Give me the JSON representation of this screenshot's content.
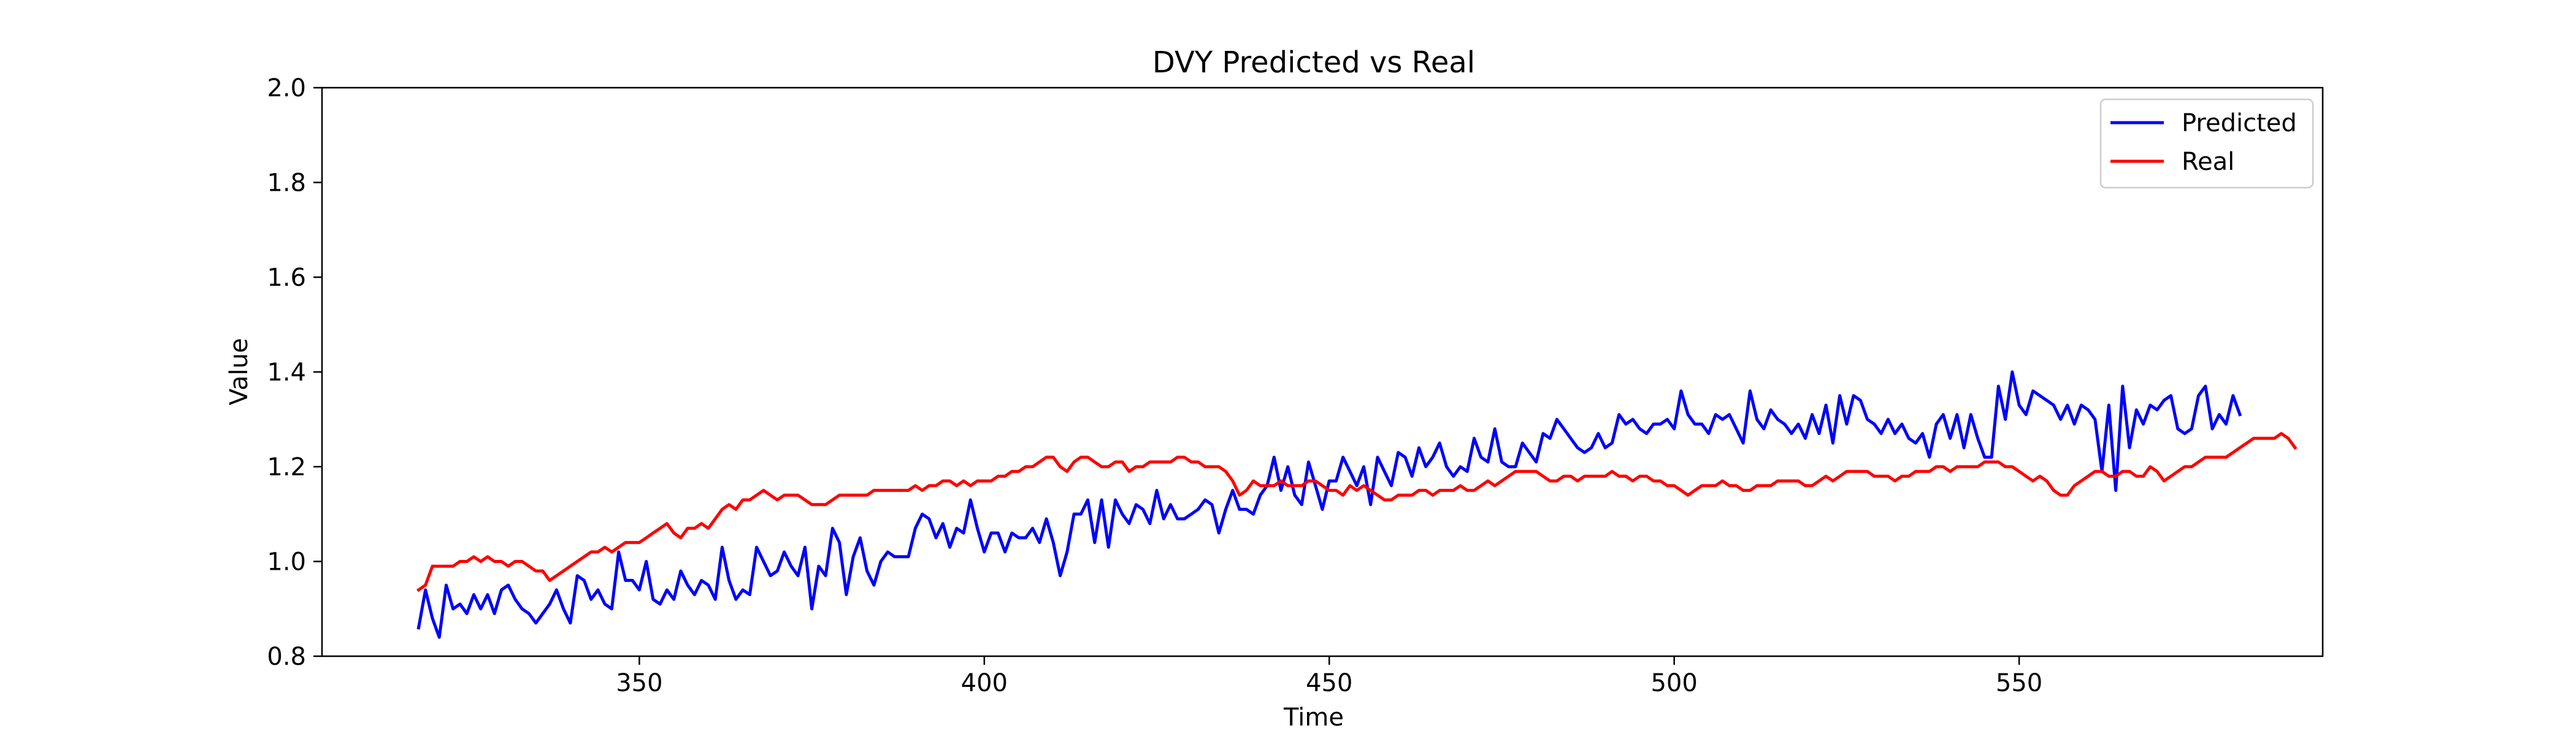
{
  "chart_data": {
    "type": "line",
    "title": "DVY Predicted vs Real",
    "xlabel": "Time",
    "ylabel": "Value",
    "xlim": [
      304,
      594
    ],
    "ylim": [
      0.8,
      2.0
    ],
    "xticks": [
      350,
      400,
      450,
      500,
      550
    ],
    "yticks": [
      0.8,
      1.0,
      1.2,
      1.4,
      1.6,
      1.8,
      2.0
    ],
    "xtick_labels": [
      "350",
      "400",
      "450",
      "500",
      "550"
    ],
    "ytick_labels": [
      "0.8",
      "1.0",
      "1.2",
      "1.4",
      "1.6",
      "1.8",
      "2.0"
    ],
    "grid": false,
    "legend": "top-right",
    "x_start": 318,
    "series": [
      {
        "name": "Predicted",
        "color": "#0000ff",
        "values": [
          0.86,
          0.94,
          0.88,
          0.84,
          0.95,
          0.9,
          0.91,
          0.89,
          0.93,
          0.9,
          0.93,
          0.89,
          0.94,
          0.95,
          0.92,
          0.9,
          0.89,
          0.87,
          0.89,
          0.91,
          0.94,
          0.9,
          0.87,
          0.97,
          0.96,
          0.92,
          0.94,
          0.91,
          0.9,
          1.02,
          0.96,
          0.96,
          0.94,
          1.0,
          0.92,
          0.91,
          0.94,
          0.92,
          0.98,
          0.95,
          0.93,
          0.96,
          0.95,
          0.92,
          1.03,
          0.96,
          0.92,
          0.94,
          0.93,
          1.03,
          1.0,
          0.97,
          0.98,
          1.02,
          0.99,
          0.97,
          1.03,
          0.9,
          0.99,
          0.97,
          1.07,
          1.04,
          0.93,
          1.01,
          1.05,
          0.98,
          0.95,
          1.0,
          1.02,
          1.01,
          1.01,
          1.01,
          1.07,
          1.1,
          1.09,
          1.05,
          1.08,
          1.03,
          1.07,
          1.06,
          1.13,
          1.07,
          1.02,
          1.06,
          1.06,
          1.02,
          1.06,
          1.05,
          1.05,
          1.07,
          1.04,
          1.09,
          1.04,
          0.97,
          1.02,
          1.1,
          1.1,
          1.13,
          1.04,
          1.13,
          1.03,
          1.13,
          1.1,
          1.08,
          1.12,
          1.11,
          1.08,
          1.15,
          1.09,
          1.12,
          1.09,
          1.09,
          1.1,
          1.11,
          1.13,
          1.12,
          1.06,
          1.11,
          1.15,
          1.11,
          1.11,
          1.1,
          1.14,
          1.16,
          1.22,
          1.15,
          1.2,
          1.14,
          1.12,
          1.21,
          1.16,
          1.11,
          1.17,
          1.17,
          1.22,
          1.19,
          1.16,
          1.2,
          1.12,
          1.22,
          1.19,
          1.16,
          1.23,
          1.22,
          1.18,
          1.24,
          1.2,
          1.22,
          1.25,
          1.2,
          1.18,
          1.2,
          1.19,
          1.26,
          1.22,
          1.21,
          1.28,
          1.21,
          1.2,
          1.2,
          1.25,
          1.23,
          1.21,
          1.27,
          1.26,
          1.3,
          1.28,
          1.26,
          1.24,
          1.23,
          1.24,
          1.27,
          1.24,
          1.25,
          1.31,
          1.29,
          1.3,
          1.28,
          1.27,
          1.29,
          1.29,
          1.3,
          1.28,
          1.36,
          1.31,
          1.29,
          1.29,
          1.27,
          1.31,
          1.3,
          1.31,
          1.28,
          1.25,
          1.36,
          1.3,
          1.28,
          1.32,
          1.3,
          1.29,
          1.27,
          1.29,
          1.26,
          1.31,
          1.27,
          1.33,
          1.25,
          1.35,
          1.29,
          1.35,
          1.34,
          1.3,
          1.29,
          1.27,
          1.3,
          1.27,
          1.29,
          1.26,
          1.25,
          1.27,
          1.22,
          1.29,
          1.31,
          1.26,
          1.31,
          1.24,
          1.31,
          1.26,
          1.22,
          1.22,
          1.37,
          1.3,
          1.4,
          1.33,
          1.31,
          1.36,
          1.35,
          1.34,
          1.33,
          1.3,
          1.33,
          1.29,
          1.33,
          1.32,
          1.3,
          1.19,
          1.33,
          1.15,
          1.37,
          1.24,
          1.32,
          1.29,
          1.33,
          1.32,
          1.34,
          1.35,
          1.28,
          1.27,
          1.28,
          1.35,
          1.37,
          1.28,
          1.31,
          1.29,
          1.35,
          1.31
        ]
      },
      {
        "name": "Real",
        "color": "#ff0000",
        "values": [
          0.94,
          0.95,
          0.99,
          0.99,
          0.99,
          0.99,
          1.0,
          1.0,
          1.01,
          1.0,
          1.01,
          1.0,
          1.0,
          0.99,
          1.0,
          1.0,
          0.99,
          0.98,
          0.98,
          0.96,
          0.97,
          0.98,
          0.99,
          1.0,
          1.01,
          1.02,
          1.02,
          1.03,
          1.02,
          1.03,
          1.04,
          1.04,
          1.04,
          1.05,
          1.06,
          1.07,
          1.08,
          1.06,
          1.05,
          1.07,
          1.07,
          1.08,
          1.07,
          1.09,
          1.11,
          1.12,
          1.11,
          1.13,
          1.13,
          1.14,
          1.15,
          1.14,
          1.13,
          1.14,
          1.14,
          1.14,
          1.13,
          1.12,
          1.12,
          1.12,
          1.13,
          1.14,
          1.14,
          1.14,
          1.14,
          1.14,
          1.15,
          1.15,
          1.15,
          1.15,
          1.15,
          1.15,
          1.16,
          1.15,
          1.16,
          1.16,
          1.17,
          1.17,
          1.16,
          1.17,
          1.16,
          1.17,
          1.17,
          1.17,
          1.18,
          1.18,
          1.19,
          1.19,
          1.2,
          1.2,
          1.21,
          1.22,
          1.22,
          1.2,
          1.19,
          1.21,
          1.22,
          1.22,
          1.21,
          1.2,
          1.2,
          1.21,
          1.21,
          1.19,
          1.2,
          1.2,
          1.21,
          1.21,
          1.21,
          1.21,
          1.22,
          1.22,
          1.21,
          1.21,
          1.2,
          1.2,
          1.2,
          1.19,
          1.17,
          1.14,
          1.15,
          1.17,
          1.16,
          1.16,
          1.16,
          1.17,
          1.16,
          1.16,
          1.16,
          1.17,
          1.17,
          1.16,
          1.15,
          1.15,
          1.14,
          1.16,
          1.15,
          1.16,
          1.15,
          1.14,
          1.13,
          1.13,
          1.14,
          1.14,
          1.14,
          1.15,
          1.15,
          1.14,
          1.15,
          1.15,
          1.15,
          1.16,
          1.15,
          1.15,
          1.16,
          1.17,
          1.16,
          1.17,
          1.18,
          1.19,
          1.19,
          1.19,
          1.19,
          1.18,
          1.17,
          1.17,
          1.18,
          1.18,
          1.17,
          1.18,
          1.18,
          1.18,
          1.18,
          1.19,
          1.18,
          1.18,
          1.17,
          1.18,
          1.18,
          1.17,
          1.17,
          1.16,
          1.16,
          1.15,
          1.14,
          1.15,
          1.16,
          1.16,
          1.16,
          1.17,
          1.16,
          1.16,
          1.15,
          1.15,
          1.16,
          1.16,
          1.16,
          1.17,
          1.17,
          1.17,
          1.17,
          1.16,
          1.16,
          1.17,
          1.18,
          1.17,
          1.18,
          1.19,
          1.19,
          1.19,
          1.19,
          1.18,
          1.18,
          1.18,
          1.17,
          1.18,
          1.18,
          1.19,
          1.19,
          1.19,
          1.2,
          1.2,
          1.19,
          1.2,
          1.2,
          1.2,
          1.2,
          1.21,
          1.21,
          1.21,
          1.2,
          1.2,
          1.19,
          1.18,
          1.17,
          1.18,
          1.17,
          1.15,
          1.14,
          1.14,
          1.16,
          1.17,
          1.18,
          1.19,
          1.19,
          1.18,
          1.18,
          1.19,
          1.19,
          1.18,
          1.18,
          1.2,
          1.19,
          1.17,
          1.18,
          1.19,
          1.2,
          1.2,
          1.21,
          1.22,
          1.22,
          1.22,
          1.22,
          1.23,
          1.24,
          1.25,
          1.26,
          1.26,
          1.26,
          1.26,
          1.27,
          1.26,
          1.24
        ]
      }
    ]
  }
}
